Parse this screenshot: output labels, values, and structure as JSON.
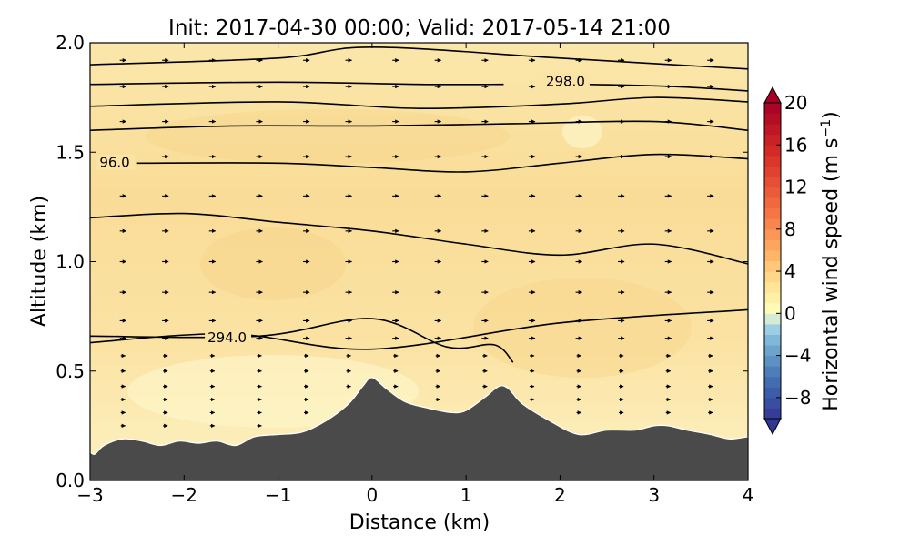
{
  "chart_data": {
    "type": "contour",
    "title": "Init: 2017-04-30 00:00; Valid: 2017-05-14 21:00",
    "xlabel": "Distance (km)",
    "ylabel": "Altitude (km)",
    "xlim": [
      -3,
      4
    ],
    "ylim": [
      0.0,
      2.0
    ],
    "xticks": [
      "−3",
      "−2",
      "−1",
      "0",
      "1",
      "2",
      "3",
      "4"
    ],
    "yticks": [
      "0.0",
      "0.5",
      "1.0",
      "1.5",
      "2.0"
    ],
    "colorbar": {
      "label": "Horizontal wind speed (m s",
      "label_sup": "−1",
      "label_end": ")",
      "range": [
        -10,
        20
      ],
      "ticks": [
        "20",
        "16",
        "12",
        "8",
        "4",
        "0",
        "−4",
        "−8"
      ],
      "extend": "both"
    },
    "background_field": {
      "description": "wind speed 0–4 m/s",
      "colors": [
        "#fdf3be",
        "#fbe5a6",
        "#f9d990"
      ]
    },
    "terrain": {
      "color": "#4a4a4a",
      "x": [
        -3.0,
        -2.95,
        -2.85,
        -2.65,
        -2.45,
        -2.25,
        -2.05,
        -1.85,
        -1.65,
        -1.45,
        -1.25,
        -1.0,
        -0.75,
        -0.5,
        -0.25,
        -0.1,
        0.0,
        0.15,
        0.35,
        0.6,
        0.85,
        1.0,
        1.2,
        1.35,
        1.45,
        1.6,
        1.9,
        2.2,
        2.5,
        2.8,
        3.0,
        3.15,
        3.35,
        3.6,
        3.8,
        4.0
      ],
      "y": [
        0.13,
        0.12,
        0.16,
        0.19,
        0.18,
        0.16,
        0.18,
        0.17,
        0.18,
        0.16,
        0.2,
        0.21,
        0.22,
        0.27,
        0.35,
        0.43,
        0.47,
        0.42,
        0.36,
        0.33,
        0.31,
        0.32,
        0.38,
        0.43,
        0.42,
        0.35,
        0.27,
        0.21,
        0.23,
        0.23,
        0.25,
        0.25,
        0.23,
        0.21,
        0.19,
        0.2
      ]
    },
    "isentropes": [
      {
        "x": [
          -3,
          -1.5,
          0,
          2,
          4
        ],
        "y": [
          0.63,
          0.67,
          0.6,
          0.72,
          0.78
        ]
      },
      {
        "x": [
          -3,
          -1.2,
          0.0,
          0.8,
          1.3,
          1.5
        ],
        "y": [
          0.66,
          0.66,
          0.74,
          0.61,
          0.62,
          0.54
        ]
      },
      {
        "x": [
          -3,
          -2,
          -1,
          0,
          1,
          2,
          3,
          4
        ],
        "y": [
          1.2,
          1.22,
          1.18,
          1.14,
          1.08,
          1.03,
          1.08,
          0.99
        ]
      },
      {
        "x": [
          -2.5,
          -1,
          0,
          1,
          2,
          3,
          4
        ],
        "y": [
          1.45,
          1.45,
          1.43,
          1.41,
          1.45,
          1.49,
          1.47
        ]
      },
      {
        "x": [
          -3,
          -1.5,
          0,
          1.5,
          3,
          4
        ],
        "y": [
          1.6,
          1.62,
          1.62,
          1.63,
          1.64,
          1.6
        ]
      },
      {
        "x": [
          -3,
          -1,
          0.5,
          2,
          3,
          4
        ],
        "y": [
          1.71,
          1.73,
          1.7,
          1.72,
          1.75,
          1.73
        ]
      },
      {
        "x": [
          -3,
          -1,
          0.5,
          1.4
        ],
        "y": [
          1.81,
          1.82,
          1.81,
          1.81
        ]
      },
      {
        "x": [
          2.3,
          3.2,
          4
        ],
        "y": [
          1.81,
          1.8,
          1.78
        ]
      },
      {
        "x": [
          -3,
          -1,
          0,
          2,
          4
        ],
        "y": [
          1.9,
          1.93,
          1.98,
          1.93,
          1.88
        ]
      }
    ],
    "contour_labels": [
      {
        "text": "298.0",
        "x": 1.85,
        "y": 1.81
      },
      {
        "text": "96.0",
        "x": -2.9,
        "y": 1.44
      },
      {
        "text": "294.0",
        "x": -1.75,
        "y": 0.64
      }
    ],
    "wind_vectors": {
      "columns_x": [
        -2.65,
        -2.2,
        -1.7,
        -1.2,
        -0.7,
        -0.25,
        0.25,
        0.7,
        1.2,
        1.7,
        2.2,
        2.65,
        3.15,
        3.6
      ],
      "levels_km": [
        0.25,
        0.31,
        0.37,
        0.43,
        0.5,
        0.57,
        0.65,
        0.73,
        0.86,
        1.0,
        1.14,
        1.3,
        1.48,
        1.64,
        1.8,
        1.92
      ],
      "direction": "eastward"
    }
  }
}
